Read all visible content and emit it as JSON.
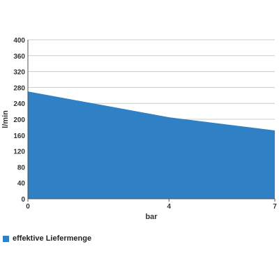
{
  "chart_data": {
    "type": "area",
    "x": [
      0,
      4,
      7
    ],
    "x_ticks": [
      "0",
      "4",
      "7"
    ],
    "xlim": [
      0,
      7
    ],
    "xlabel": "bar",
    "ylabel": "l/min",
    "ylim": [
      0,
      400
    ],
    "y_ticks": [
      "0",
      "40",
      "80",
      "120",
      "160",
      "200",
      "240",
      "280",
      "320",
      "360",
      "400"
    ],
    "grid": true,
    "legend_position": "bottom-left",
    "series": [
      {
        "name": "effektive Liefermenge",
        "values": [
          270,
          205,
          172
        ],
        "color": "#2f80c4"
      }
    ]
  }
}
